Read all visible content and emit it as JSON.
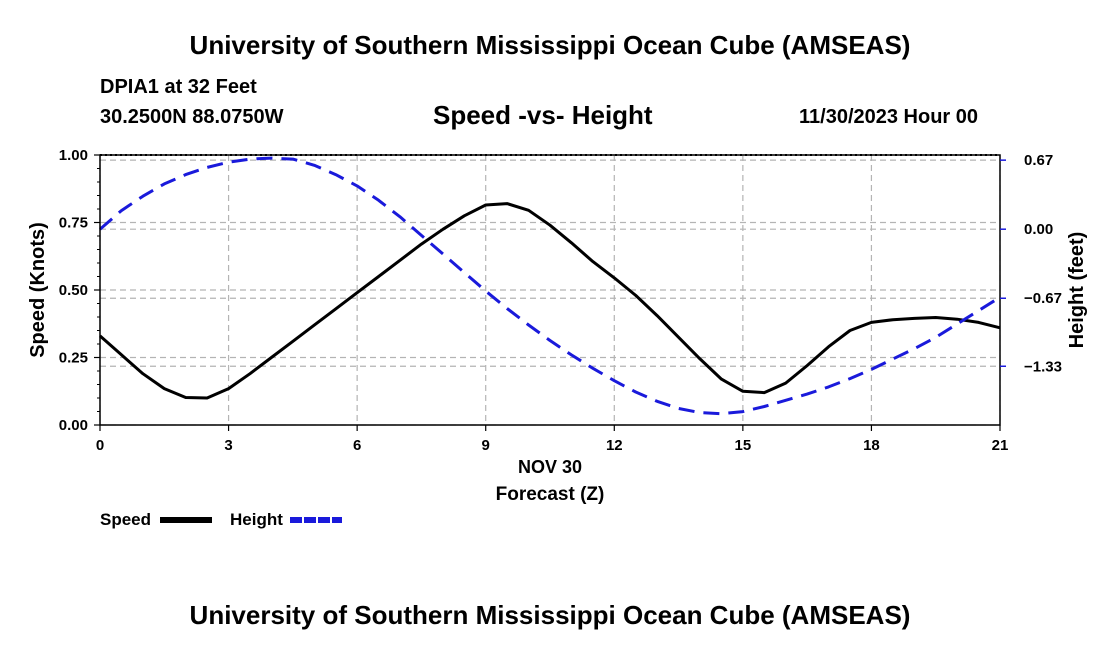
{
  "header": {
    "title": "University of Southern Mississippi Ocean Cube (AMSEAS)",
    "station": "DPIA1 at 32 Feet",
    "location": "30.2500N  88.0750W",
    "subtitle": "Speed -vs- Height",
    "datetime": "11/30/2023 Hour 00"
  },
  "footer": {
    "title": "University of Southern Mississippi Ocean Cube (AMSEAS)"
  },
  "colors": {
    "speed": "#000000",
    "height": "#1a1adb",
    "grid": "#b4b4b4"
  },
  "chart_data": {
    "type": "line",
    "title": "Speed -vs- Height",
    "xlabel": "Forecast (Z)",
    "xlabel_date": "NOV 30",
    "ylabel_left": "Speed (Knots)",
    "ylabel_right": "Height (feet)",
    "xlim": [
      0,
      21
    ],
    "ylim_left": [
      0,
      1.0
    ],
    "ylim_right": [
      -1.9,
      0.72
    ],
    "x_ticks": [
      0,
      3,
      6,
      9,
      12,
      15,
      18,
      21
    ],
    "x_tick_labels": [
      "0",
      "3",
      "6",
      "9",
      "12",
      "15",
      "18",
      "21"
    ],
    "y_left_ticks": [
      0,
      0.25,
      0.5,
      0.75,
      1.0
    ],
    "y_left_tick_labels": [
      "0.00",
      "0.25",
      "0.50",
      "0.75",
      "1.00"
    ],
    "y_right_ticks": [
      0.67,
      0.0,
      -0.67,
      -1.33
    ],
    "y_right_tick_labels": [
      "0.67",
      "0.00",
      "−0.67",
      "−1.33"
    ],
    "grid": true,
    "series": [
      {
        "name": "Speed",
        "axis": "left",
        "style": "solid",
        "x": [
          0,
          0.5,
          1,
          1.5,
          2,
          2.5,
          3,
          3.5,
          4,
          4.5,
          5,
          5.5,
          6,
          6.5,
          7,
          7.5,
          8,
          8.5,
          9,
          9.5,
          10,
          10.5,
          11,
          11.5,
          12,
          12.5,
          13,
          13.5,
          14,
          14.5,
          15,
          15.5,
          16,
          16.5,
          17,
          17.5,
          18,
          18.5,
          19,
          19.5,
          20,
          20.5,
          21
        ],
        "values": [
          0.33,
          0.26,
          0.19,
          0.135,
          0.102,
          0.1,
          0.135,
          0.19,
          0.25,
          0.31,
          0.37,
          0.43,
          0.49,
          0.55,
          0.61,
          0.67,
          0.725,
          0.775,
          0.815,
          0.82,
          0.795,
          0.74,
          0.675,
          0.605,
          0.545,
          0.48,
          0.405,
          0.325,
          0.245,
          0.17,
          0.125,
          0.12,
          0.155,
          0.22,
          0.29,
          0.35,
          0.38,
          0.39,
          0.395,
          0.398,
          0.392,
          0.38,
          0.36
        ]
      },
      {
        "name": "Height",
        "axis": "right",
        "style": "dashed",
        "x": [
          0,
          0.5,
          1,
          1.5,
          2,
          2.5,
          3,
          3.5,
          4,
          4.5,
          5,
          5.5,
          6,
          6.5,
          7,
          7.5,
          8,
          8.5,
          9,
          9.5,
          10,
          10.5,
          11,
          11.5,
          12,
          12.5,
          13,
          13.5,
          14,
          14.5,
          15,
          15.5,
          16,
          16.5,
          17,
          17.5,
          18,
          18.5,
          19,
          19.5,
          20,
          20.5,
          21
        ],
        "values": [
          0.0,
          0.18,
          0.32,
          0.44,
          0.53,
          0.6,
          0.65,
          0.68,
          0.69,
          0.68,
          0.62,
          0.53,
          0.42,
          0.28,
          0.12,
          -0.06,
          -0.24,
          -0.42,
          -0.6,
          -0.77,
          -0.93,
          -1.08,
          -1.22,
          -1.35,
          -1.47,
          -1.58,
          -1.67,
          -1.74,
          -1.78,
          -1.79,
          -1.77,
          -1.72,
          -1.66,
          -1.6,
          -1.53,
          -1.45,
          -1.36,
          -1.26,
          -1.16,
          -1.05,
          -0.92,
          -0.79,
          -0.66
        ]
      }
    ],
    "legend": [
      {
        "name": "Speed",
        "style": "solid"
      },
      {
        "name": "Height",
        "style": "dashed"
      }
    ],
    "legend_position": "bottom-left"
  }
}
